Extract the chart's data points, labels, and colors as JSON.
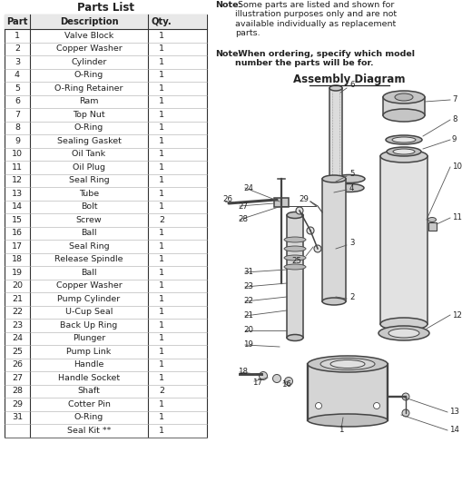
{
  "title": "Parts List",
  "table_headers": [
    "Part",
    "Description",
    "Qty."
  ],
  "table_rows": [
    [
      "1",
      "Valve Block",
      "1"
    ],
    [
      "2",
      "Copper Washer",
      "1"
    ],
    [
      "3",
      "Cylinder",
      "1"
    ],
    [
      "4",
      "O-Ring",
      "1"
    ],
    [
      "5",
      "O-Ring Retainer",
      "1"
    ],
    [
      "6",
      "Ram",
      "1"
    ],
    [
      "7",
      "Top Nut",
      "1"
    ],
    [
      "8",
      "O-Ring",
      "1"
    ],
    [
      "9",
      "Sealing Gasket",
      "1"
    ],
    [
      "10",
      "Oil Tank",
      "1"
    ],
    [
      "11",
      "Oil Plug",
      "1"
    ],
    [
      "12",
      "Seal Ring",
      "1"
    ],
    [
      "13",
      "Tube",
      "1"
    ],
    [
      "14",
      "Bolt",
      "1"
    ],
    [
      "15",
      "Screw",
      "2"
    ],
    [
      "16",
      "Ball",
      "1"
    ],
    [
      "17",
      "Seal Ring",
      "1"
    ],
    [
      "18",
      "Release Spindle",
      "1"
    ],
    [
      "19",
      "Ball",
      "1"
    ],
    [
      "20",
      "Copper Washer",
      "1"
    ],
    [
      "21",
      "Pump Cylinder",
      "1"
    ],
    [
      "22",
      "U-Cup Seal",
      "1"
    ],
    [
      "23",
      "Back Up Ring",
      "1"
    ],
    [
      "24",
      "Plunger",
      "1"
    ],
    [
      "25",
      "Pump Link",
      "1"
    ],
    [
      "26",
      "Handle",
      "1"
    ],
    [
      "27",
      "Handle Socket",
      "1"
    ],
    [
      "28",
      "Shaft",
      "2"
    ],
    [
      "29",
      "Cotter Pin",
      "1"
    ],
    [
      "31",
      "O-Ring",
      "1"
    ],
    [
      "",
      "Seal Kit **",
      "1"
    ]
  ],
  "note1_bold": "Note:",
  "note1_text": " Some parts are listed and shown for\nillustration purposes only and are not\navailable individually as replacement\nparts.",
  "note2_bold": "Note:",
  "note2_text": " When ordering, specify which model\nnumber the parts will be for.",
  "diagram_title": "Assembly Diagram",
  "bg_color": "#ffffff",
  "text_color": "#222222",
  "line_color": "#444444"
}
